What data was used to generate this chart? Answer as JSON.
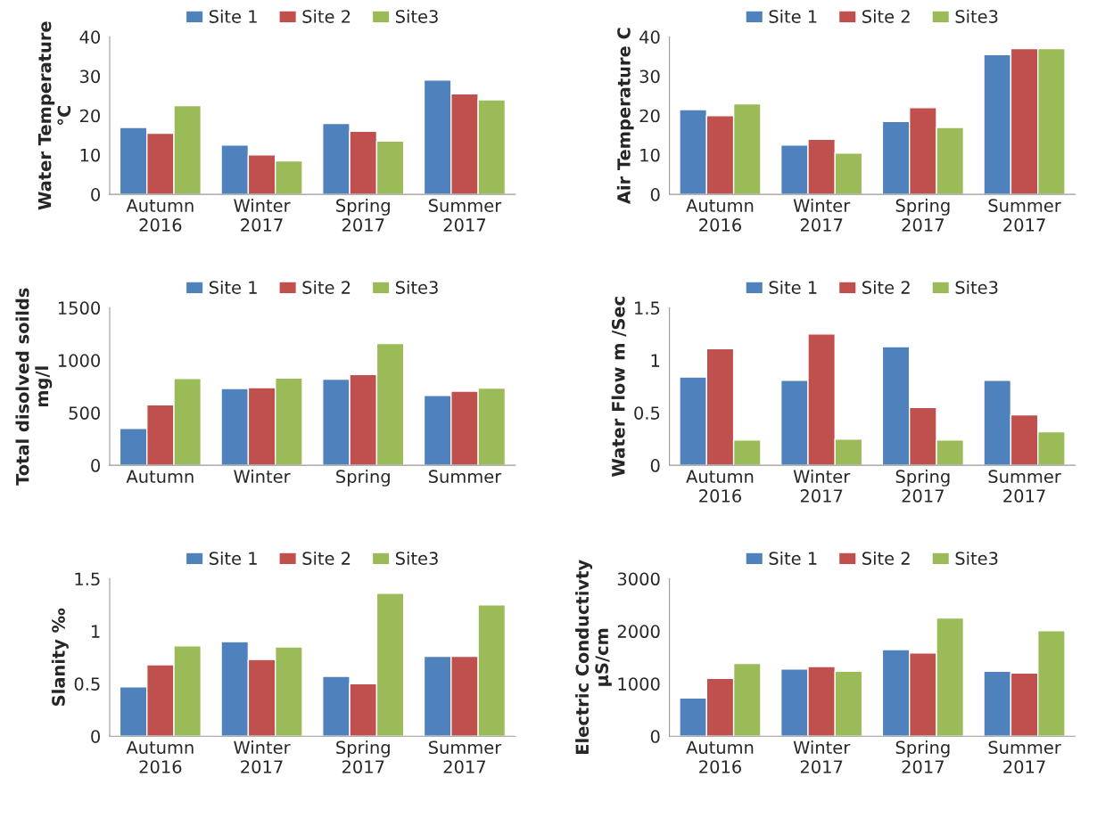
{
  "chart_data": [
    {
      "type": "bar",
      "ylabel": "Water Temperature\n°C",
      "categories": [
        "Autumn\n2016",
        "Winter\n2017",
        "Spring\n2017",
        "Summer\n2017"
      ],
      "ylim": [
        0,
        40
      ],
      "yticks": [
        0,
        10,
        20,
        30,
        40
      ],
      "legend": "top",
      "grid": false,
      "series": [
        {
          "name": "Site 1",
          "color": "#4f81bd",
          "values": [
            17,
            12.5,
            18,
            29
          ]
        },
        {
          "name": "Site 2",
          "color": "#c0504d",
          "values": [
            15.5,
            10,
            16,
            25.5
          ]
        },
        {
          "name": "Site3",
          "color": "#9bbb59",
          "values": [
            22.5,
            8.5,
            13.5,
            24
          ]
        }
      ]
    },
    {
      "type": "bar",
      "ylabel": "Air Temperature C",
      "categories": [
        "Autumn\n2016",
        "Winter\n2017",
        "Spring\n2017",
        "Summer\n2017"
      ],
      "ylim": [
        0,
        40
      ],
      "yticks": [
        0,
        10,
        20,
        30,
        40
      ],
      "legend": "top",
      "grid": false,
      "series": [
        {
          "name": "Site 1",
          "color": "#4f81bd",
          "values": [
            21.5,
            12.5,
            18.5,
            35.5
          ]
        },
        {
          "name": "Site 2",
          "color": "#c0504d",
          "values": [
            20,
            14,
            22,
            37
          ]
        },
        {
          "name": "Site3",
          "color": "#9bbb59",
          "values": [
            23,
            10.5,
            17,
            37
          ]
        }
      ]
    },
    {
      "type": "bar",
      "ylabel": "Total disolved soilds\nmg/l",
      "categories": [
        "Autumn",
        "Winter",
        "Spring",
        "Summer"
      ],
      "ylim": [
        0,
        1500
      ],
      "yticks": [
        0,
        500,
        1000,
        1500
      ],
      "legend": "top",
      "grid": false,
      "series": [
        {
          "name": "Site 1",
          "color": "#4f81bd",
          "values": [
            350,
            730,
            820,
            665
          ]
        },
        {
          "name": "Site 2",
          "color": "#c0504d",
          "values": [
            575,
            740,
            865,
            705
          ]
        },
        {
          "name": "Site3",
          "color": "#9bbb59",
          "values": [
            825,
            830,
            1160,
            735
          ]
        }
      ]
    },
    {
      "type": "bar",
      "ylabel": "Water Flow m /Sec",
      "categories": [
        "Autumn\n2016",
        "Winter\n2017",
        "Spring\n2017",
        "Summer\n2017"
      ],
      "ylim": [
        0,
        1.5
      ],
      "yticks": [
        0,
        0.5,
        1,
        1.5
      ],
      "legend": "top",
      "grid": false,
      "series": [
        {
          "name": "Site 1",
          "color": "#4f81bd",
          "values": [
            0.84,
            0.81,
            1.13,
            0.81
          ]
        },
        {
          "name": "Site 2",
          "color": "#c0504d",
          "values": [
            1.11,
            1.25,
            0.55,
            0.48
          ]
        },
        {
          "name": "Site3",
          "color": "#9bbb59",
          "values": [
            0.24,
            0.25,
            0.24,
            0.32
          ]
        }
      ]
    },
    {
      "type": "bar",
      "ylabel": "Slanity ‰",
      "categories": [
        "Autumn\n2016",
        "Winter\n2017",
        "Spring\n2017",
        "Summer\n2017"
      ],
      "ylim": [
        0,
        1.5
      ],
      "yticks": [
        0,
        0.5,
        1,
        1.5
      ],
      "legend": "top",
      "grid": false,
      "series": [
        {
          "name": "Site 1",
          "color": "#4f81bd",
          "values": [
            0.47,
            0.9,
            0.57,
            0.76
          ]
        },
        {
          "name": "Site 2",
          "color": "#c0504d",
          "values": [
            0.68,
            0.73,
            0.5,
            0.76
          ]
        },
        {
          "name": "Site3",
          "color": "#9bbb59",
          "values": [
            0.86,
            0.85,
            1.36,
            1.25
          ]
        }
      ]
    },
    {
      "type": "bar",
      "ylabel": "Electric Conductivty\nµS/cm",
      "categories": [
        "Autumn\n2016",
        "Winter\n2017",
        "Spring\n2017",
        "Summer\n2017"
      ],
      "ylim": [
        0,
        3000
      ],
      "yticks": [
        0,
        1000,
        2000,
        3000
      ],
      "legend": "top",
      "grid": false,
      "series": [
        {
          "name": "Site 1",
          "color": "#4f81bd",
          "values": [
            730,
            1280,
            1650,
            1235
          ]
        },
        {
          "name": "Site 2",
          "color": "#c0504d",
          "values": [
            1100,
            1325,
            1585,
            1205
          ]
        },
        {
          "name": "Site3",
          "color": "#9bbb59",
          "values": [
            1385,
            1235,
            2250,
            2010
          ]
        }
      ]
    }
  ]
}
